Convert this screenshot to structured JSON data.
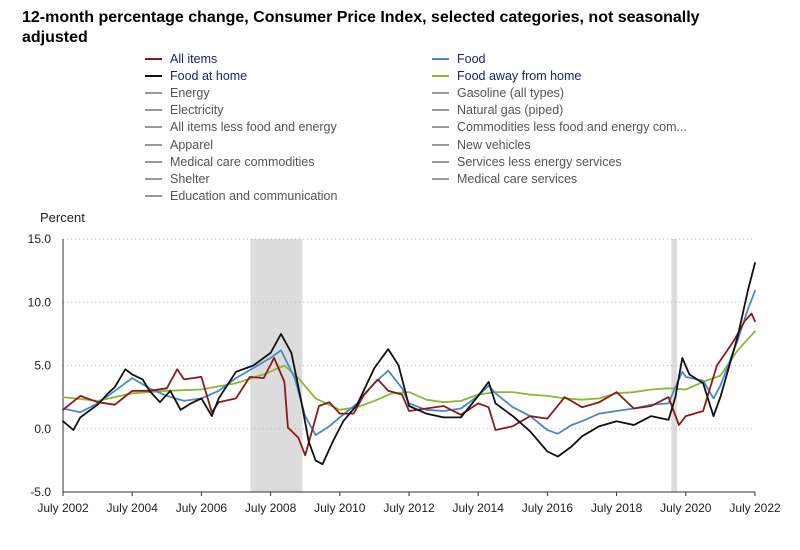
{
  "chart_data": {
    "type": "line",
    "title": "12-month percentage change, Consumer Price Index, selected categories, not seasonally adjusted",
    "ylabel": "Percent",
    "xlabel": "",
    "ylim": [
      -5.0,
      15.0
    ],
    "y_ticks": [
      "15.0",
      "10.0",
      "5.0",
      "0.0",
      "-5.0"
    ],
    "y_tick_values": [
      15,
      10,
      5,
      0,
      -5
    ],
    "x_ticks": [
      "July 2002",
      "July 2004",
      "July 2006",
      "July 2008",
      "July 2010",
      "July 2012",
      "July 2014",
      "July 2016",
      "July 2018",
      "July 2020",
      "July 2022"
    ],
    "x_tick_values": [
      2002.5,
      2004.5,
      2006.5,
      2008.5,
      2010.5,
      2012.5,
      2014.5,
      2016.5,
      2018.5,
      2020.5,
      2022.5
    ],
    "xlim": [
      2002.5,
      2022.5
    ],
    "grid": "horizontal dotted",
    "recessions": [
      [
        2007.92,
        2009.42
      ],
      [
        2020.08,
        2020.25
      ]
    ],
    "legend": {
      "column1": [
        {
          "name": "All items",
          "color": "#8b1a1a",
          "active": true
        },
        {
          "name": "Food at home",
          "color": "#111111",
          "active": true
        },
        {
          "name": "Energy",
          "color": "#999999",
          "active": false
        },
        {
          "name": "Electricity",
          "color": "#999999",
          "active": false
        },
        {
          "name": "All items less food and energy",
          "color": "#999999",
          "active": false
        },
        {
          "name": "Apparel",
          "color": "#999999",
          "active": false
        },
        {
          "name": "Medical care commodities",
          "color": "#999999",
          "active": false
        },
        {
          "name": "Shelter",
          "color": "#999999",
          "active": false
        },
        {
          "name": "Education and communication",
          "color": "#999999",
          "active": false
        }
      ],
      "column2": [
        {
          "name": "Food",
          "color": "#4a89c8",
          "active": true
        },
        {
          "name": "Food away from home",
          "color": "#8db832",
          "active": true
        },
        {
          "name": "Gasoline (all types)",
          "color": "#999999",
          "active": false
        },
        {
          "name": "Natural gas (piped)",
          "color": "#999999",
          "active": false
        },
        {
          "name": "Commodities less food and energy com...",
          "color": "#999999",
          "active": false
        },
        {
          "name": "New vehicles",
          "color": "#999999",
          "active": false
        },
        {
          "name": "Services less energy services",
          "color": "#999999",
          "active": false
        },
        {
          "name": "Medical care services",
          "color": "#999999",
          "active": false
        }
      ]
    },
    "series": [
      {
        "name": "Food away from home",
        "color": "#8db832",
        "points": [
          [
            2002.5,
            2.5
          ],
          [
            2003.5,
            2.2
          ],
          [
            2004.5,
            2.8
          ],
          [
            2005.5,
            3.0
          ],
          [
            2006.5,
            3.1
          ],
          [
            2007.5,
            3.6
          ],
          [
            2008.3,
            4.3
          ],
          [
            2008.9,
            5.0
          ],
          [
            2009.3,
            4.0
          ],
          [
            2009.8,
            2.4
          ],
          [
            2010.5,
            1.5
          ],
          [
            2011.0,
            1.7
          ],
          [
            2011.5,
            2.2
          ],
          [
            2012.0,
            2.8
          ],
          [
            2012.5,
            2.9
          ],
          [
            2013.0,
            2.3
          ],
          [
            2013.5,
            2.1
          ],
          [
            2014.0,
            2.2
          ],
          [
            2014.5,
            2.7
          ],
          [
            2015.0,
            2.9
          ],
          [
            2015.5,
            2.9
          ],
          [
            2016.0,
            2.7
          ],
          [
            2016.5,
            2.6
          ],
          [
            2017.0,
            2.4
          ],
          [
            2017.5,
            2.3
          ],
          [
            2018.0,
            2.4
          ],
          [
            2018.5,
            2.8
          ],
          [
            2019.0,
            2.9
          ],
          [
            2019.5,
            3.1
          ],
          [
            2020.0,
            3.2
          ],
          [
            2020.5,
            3.1
          ],
          [
            2021.0,
            3.7
          ],
          [
            2021.5,
            4.2
          ],
          [
            2022.0,
            6.2
          ],
          [
            2022.4,
            7.4
          ],
          [
            2022.5,
            7.7
          ]
        ]
      },
      {
        "name": "Food",
        "color": "#4a89c8",
        "points": [
          [
            2002.5,
            1.6
          ],
          [
            2003.0,
            1.3
          ],
          [
            2003.5,
            2.0
          ],
          [
            2004.0,
            3.0
          ],
          [
            2004.5,
            4.0
          ],
          [
            2005.0,
            3.2
          ],
          [
            2005.5,
            2.6
          ],
          [
            2006.0,
            2.2
          ],
          [
            2006.5,
            2.4
          ],
          [
            2007.0,
            3.0
          ],
          [
            2007.5,
            4.0
          ],
          [
            2008.0,
            4.8
          ],
          [
            2008.5,
            5.6
          ],
          [
            2008.8,
            6.2
          ],
          [
            2009.2,
            4.0
          ],
          [
            2009.5,
            1.0
          ],
          [
            2009.8,
            -0.5
          ],
          [
            2010.2,
            0.2
          ],
          [
            2010.5,
            0.9
          ],
          [
            2011.0,
            2.0
          ],
          [
            2011.5,
            3.6
          ],
          [
            2011.9,
            4.6
          ],
          [
            2012.3,
            3.2
          ],
          [
            2012.5,
            2.0
          ],
          [
            2013.0,
            1.5
          ],
          [
            2013.5,
            1.4
          ],
          [
            2014.0,
            1.6
          ],
          [
            2014.5,
            2.6
          ],
          [
            2014.8,
            3.4
          ],
          [
            2015.0,
            2.8
          ],
          [
            2015.5,
            1.7
          ],
          [
            2016.0,
            1.0
          ],
          [
            2016.5,
            -0.1
          ],
          [
            2016.8,
            -0.4
          ],
          [
            2017.2,
            0.3
          ],
          [
            2017.5,
            0.6
          ],
          [
            2018.0,
            1.2
          ],
          [
            2018.5,
            1.4
          ],
          [
            2019.0,
            1.6
          ],
          [
            2019.5,
            1.9
          ],
          [
            2020.0,
            2.0
          ],
          [
            2020.2,
            3.3
          ],
          [
            2020.4,
            4.5
          ],
          [
            2020.5,
            4.1
          ],
          [
            2021.0,
            3.8
          ],
          [
            2021.3,
            2.4
          ],
          [
            2021.5,
            3.4
          ],
          [
            2022.0,
            7.0
          ],
          [
            2022.3,
            9.5
          ],
          [
            2022.5,
            10.9
          ]
        ]
      },
      {
        "name": "All items",
        "color": "#8b1a1a",
        "points": [
          [
            2002.5,
            1.5
          ],
          [
            2003.0,
            2.6
          ],
          [
            2003.5,
            2.1
          ],
          [
            2004.0,
            1.9
          ],
          [
            2004.5,
            3.0
          ],
          [
            2005.0,
            3.0
          ],
          [
            2005.5,
            3.2
          ],
          [
            2005.8,
            4.7
          ],
          [
            2006.0,
            3.9
          ],
          [
            2006.5,
            4.1
          ],
          [
            2006.8,
            1.3
          ],
          [
            2007.0,
            2.1
          ],
          [
            2007.5,
            2.4
          ],
          [
            2007.9,
            4.1
          ],
          [
            2008.3,
            4.0
          ],
          [
            2008.6,
            5.6
          ],
          [
            2008.9,
            3.7
          ],
          [
            2009.0,
            0.1
          ],
          [
            2009.3,
            -0.7
          ],
          [
            2009.5,
            -2.1
          ],
          [
            2009.9,
            1.8
          ],
          [
            2010.2,
            2.1
          ],
          [
            2010.5,
            1.2
          ],
          [
            2010.9,
            1.2
          ],
          [
            2011.2,
            2.7
          ],
          [
            2011.6,
            3.9
          ],
          [
            2011.9,
            3.0
          ],
          [
            2012.3,
            2.7
          ],
          [
            2012.5,
            1.4
          ],
          [
            2013.0,
            1.6
          ],
          [
            2013.5,
            1.8
          ],
          [
            2014.0,
            1.1
          ],
          [
            2014.5,
            2.0
          ],
          [
            2014.8,
            1.7
          ],
          [
            2015.0,
            -0.1
          ],
          [
            2015.5,
            0.2
          ],
          [
            2016.0,
            1.0
          ],
          [
            2016.5,
            0.8
          ],
          [
            2017.0,
            2.5
          ],
          [
            2017.5,
            1.7
          ],
          [
            2018.0,
            2.1
          ],
          [
            2018.5,
            2.9
          ],
          [
            2019.0,
            1.6
          ],
          [
            2019.5,
            1.8
          ],
          [
            2020.0,
            2.5
          ],
          [
            2020.3,
            0.3
          ],
          [
            2020.5,
            1.0
          ],
          [
            2021.0,
            1.4
          ],
          [
            2021.4,
            5.0
          ],
          [
            2021.9,
            7.0
          ],
          [
            2022.2,
            8.5
          ],
          [
            2022.4,
            9.1
          ],
          [
            2022.5,
            8.5
          ]
        ]
      },
      {
        "name": "Food at home",
        "color": "#111111",
        "points": [
          [
            2002.5,
            0.6
          ],
          [
            2002.8,
            -0.1
          ],
          [
            2003.0,
            0.9
          ],
          [
            2003.5,
            1.9
          ],
          [
            2003.8,
            2.8
          ],
          [
            2004.0,
            3.3
          ],
          [
            2004.3,
            4.7
          ],
          [
            2004.5,
            4.3
          ],
          [
            2004.8,
            3.9
          ],
          [
            2005.0,
            3.0
          ],
          [
            2005.3,
            2.1
          ],
          [
            2005.6,
            3.0
          ],
          [
            2005.9,
            1.5
          ],
          [
            2006.2,
            2.0
          ],
          [
            2006.5,
            2.4
          ],
          [
            2006.8,
            1.0
          ],
          [
            2007.0,
            2.4
          ],
          [
            2007.5,
            4.5
          ],
          [
            2008.0,
            5.0
          ],
          [
            2008.5,
            6.0
          ],
          [
            2008.8,
            7.5
          ],
          [
            2009.1,
            6.0
          ],
          [
            2009.4,
            2.0
          ],
          [
            2009.6,
            -1.0
          ],
          [
            2009.8,
            -2.5
          ],
          [
            2010.0,
            -2.8
          ],
          [
            2010.3,
            -1.0
          ],
          [
            2010.6,
            0.6
          ],
          [
            2011.0,
            1.9
          ],
          [
            2011.5,
            4.8
          ],
          [
            2011.9,
            6.3
          ],
          [
            2012.2,
            5.0
          ],
          [
            2012.5,
            1.8
          ],
          [
            2013.0,
            1.2
          ],
          [
            2013.5,
            0.9
          ],
          [
            2014.0,
            0.9
          ],
          [
            2014.5,
            2.6
          ],
          [
            2014.8,
            3.7
          ],
          [
            2015.0,
            2.0
          ],
          [
            2015.5,
            1.0
          ],
          [
            2016.0,
            -0.2
          ],
          [
            2016.5,
            -1.8
          ],
          [
            2016.8,
            -2.2
          ],
          [
            2017.2,
            -1.4
          ],
          [
            2017.5,
            -0.6
          ],
          [
            2018.0,
            0.2
          ],
          [
            2018.5,
            0.6
          ],
          [
            2019.0,
            0.3
          ],
          [
            2019.5,
            1.0
          ],
          [
            2020.0,
            0.7
          ],
          [
            2020.2,
            2.5
          ],
          [
            2020.4,
            5.6
          ],
          [
            2020.6,
            4.3
          ],
          [
            2021.0,
            3.6
          ],
          [
            2021.3,
            1.0
          ],
          [
            2021.5,
            2.5
          ],
          [
            2022.0,
            7.3
          ],
          [
            2022.3,
            11.0
          ],
          [
            2022.5,
            13.1
          ]
        ]
      }
    ]
  }
}
